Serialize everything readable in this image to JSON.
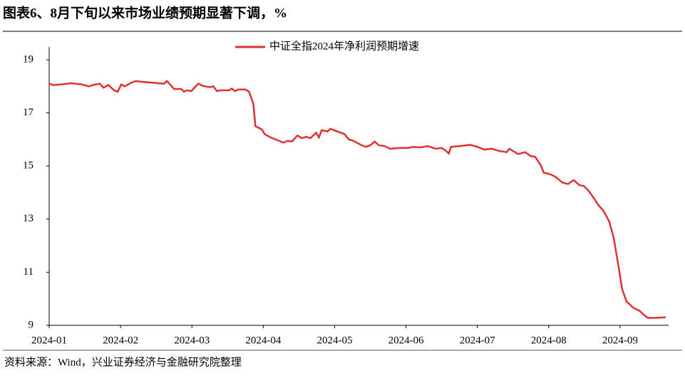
{
  "title": "图表6、8月下旬以来市场业绩预期显著下调，%",
  "source": "资料来源：Wind，兴业证券经济与金融研究院整理",
  "chart_data": {
    "type": "line",
    "legend_position": "top",
    "x": [
      0,
      0.06,
      0.16,
      0.31,
      0.46,
      0.56,
      0.61,
      0.71,
      0.76,
      0.83,
      0.91,
      0.96,
      1.01,
      1.06,
      1.16,
      1.21,
      1.31,
      1.61,
      1.65,
      1.75,
      1.85,
      1.89,
      1.93,
      1.99,
      2.09,
      2.15,
      2.25,
      2.3,
      2.35,
      2.4,
      2.52,
      2.56,
      2.6,
      2.65,
      2.75,
      2.8,
      2.86,
      2.89,
      2.98,
      3.02,
      3.1,
      3.22,
      3.28,
      3.34,
      3.4,
      3.48,
      3.54,
      3.6,
      3.66,
      3.7,
      3.74,
      3.78,
      3.82,
      3.9,
      3.94,
      4.02,
      4.14,
      4.2,
      4.26,
      4.38,
      4.44,
      4.5,
      4.56,
      4.62,
      4.7,
      4.78,
      4.9,
      5.02,
      5.1,
      5.2,
      5.3,
      5.34,
      5.42,
      5.5,
      5.56,
      5.6,
      5.63,
      5.75,
      5.9,
      6,
      6.1,
      6.2,
      6.3,
      6.41,
      6.45,
      6.57,
      6.67,
      6.75,
      6.81,
      6.89,
      6.93,
      7.01,
      7.09,
      7.19,
      7.27,
      7.35,
      7.43,
      7.49,
      7.55,
      7.63,
      7.69,
      7.77,
      7.85,
      7.91,
      7.97,
      8.03,
      8.09,
      8.19,
      8.27,
      8.33,
      8.39,
      8.49,
      8.64
    ],
    "series": [
      {
        "name": "中证全指2024年净利润预期增速",
        "color": "#e03030",
        "values": [
          18.1,
          18.05,
          18.07,
          18.12,
          18.07,
          18.0,
          18.05,
          18.1,
          17.95,
          18.05,
          17.85,
          17.8,
          18.07,
          18.0,
          18.15,
          18.2,
          18.17,
          18.1,
          18.2,
          17.9,
          17.9,
          17.8,
          17.85,
          17.82,
          18.1,
          18.02,
          17.97,
          18.0,
          17.82,
          17.85,
          17.85,
          17.92,
          17.82,
          17.88,
          17.88,
          17.8,
          17.35,
          16.5,
          16.38,
          16.2,
          16.08,
          15.95,
          15.88,
          15.95,
          15.92,
          16.15,
          16.05,
          16.1,
          16.05,
          16.15,
          16.25,
          16.08,
          16.35,
          16.3,
          16.4,
          16.32,
          16.2,
          16.0,
          15.95,
          15.78,
          15.72,
          15.78,
          15.92,
          15.78,
          15.75,
          15.65,
          15.68,
          15.68,
          15.72,
          15.7,
          15.75,
          15.72,
          15.65,
          15.68,
          15.57,
          15.47,
          15.72,
          15.75,
          15.8,
          15.72,
          15.62,
          15.65,
          15.57,
          15.52,
          15.65,
          15.45,
          15.52,
          15.37,
          15.35,
          15.02,
          14.75,
          14.7,
          14.6,
          14.38,
          14.32,
          14.47,
          14.28,
          14.25,
          14.1,
          13.8,
          13.55,
          13.3,
          12.9,
          12.3,
          11.35,
          10.35,
          9.9,
          9.65,
          9.55,
          9.4,
          9.28,
          9.28,
          9.3
        ]
      }
    ],
    "xlim": [
      0,
      8.68
    ],
    "xticks": [
      {
        "value": 0,
        "label": "2024-01"
      },
      {
        "value": 1,
        "label": "2024-02"
      },
      {
        "value": 2,
        "label": "2024-03"
      },
      {
        "value": 3,
        "label": "2024-04"
      },
      {
        "value": 4,
        "label": "2024-05"
      },
      {
        "value": 5,
        "label": "2024-06"
      },
      {
        "value": 6,
        "label": "2024-07"
      },
      {
        "value": 7,
        "label": "2024-08"
      },
      {
        "value": 8,
        "label": "2024-09"
      }
    ],
    "ylim": [
      9,
      19
    ],
    "yticks": [
      9,
      11,
      13,
      15,
      17,
      19
    ],
    "grid": false
  }
}
